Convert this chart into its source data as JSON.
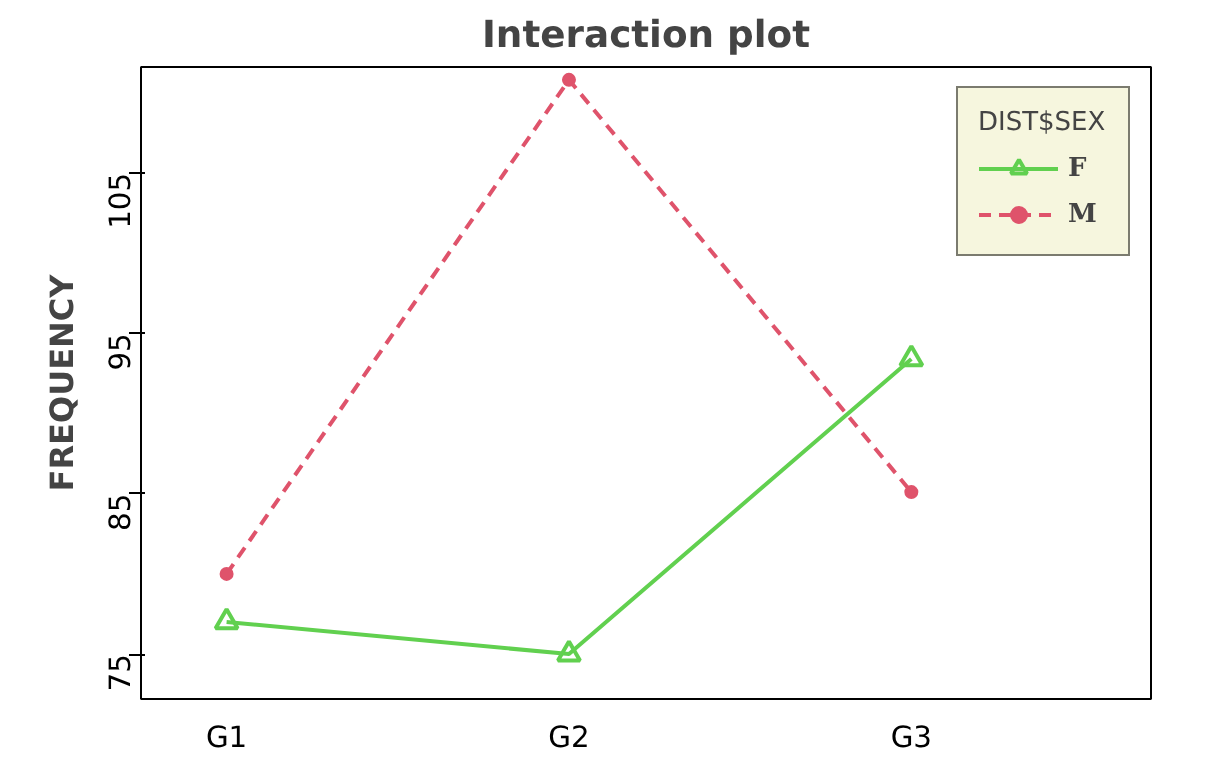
{
  "chart_data": {
    "type": "line",
    "title": "Interaction plot",
    "ylabel": "FREQUENCY",
    "legend_title": "DIST$SEX",
    "categories": [
      "G1",
      "G2",
      "G3"
    ],
    "series": [
      {
        "name": "F",
        "color": "#61d04f",
        "values": [
          77,
          75,
          93.4
        ],
        "marker": "triangle",
        "line_style": "solid"
      },
      {
        "name": "M",
        "color": "#df536b",
        "values": [
          80,
          110.8,
          85.1
        ],
        "marker": "circle",
        "line_style": "dashed"
      }
    ],
    "ylim": [
      72.2,
      111.6
    ],
    "yticks": [
      75,
      85,
      95,
      105
    ],
    "grid": false,
    "legend": "top right"
  }
}
